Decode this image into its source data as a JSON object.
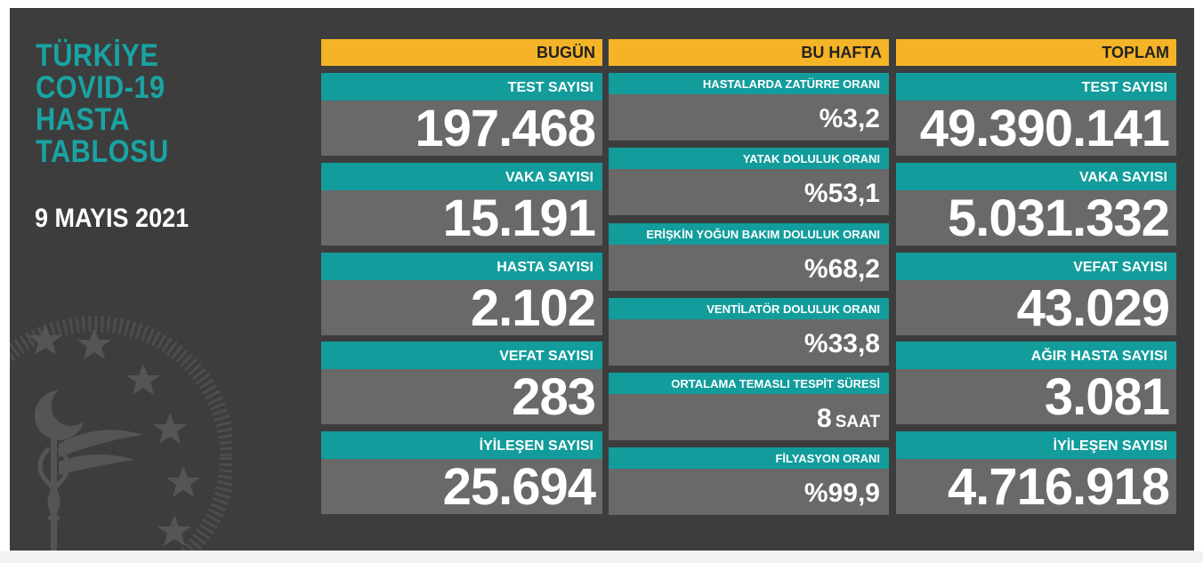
{
  "header": {
    "title_lines": [
      "TÜRKİYE",
      "COVID-19",
      "HASTA",
      "TABLOSU"
    ],
    "date": "9 MAYIS 2021"
  },
  "columns": {
    "today": {
      "heading": "BUGÜN",
      "cards": [
        {
          "label": "TEST SAYISI",
          "value": "197.468"
        },
        {
          "label": "VAKA SAYISI",
          "value": "15.191"
        },
        {
          "label": "HASTA SAYISI",
          "value": "2.102"
        },
        {
          "label": "VEFAT SAYISI",
          "value": "283"
        },
        {
          "label": "İYİLEŞEN SAYISI",
          "value": "25.694"
        }
      ]
    },
    "week": {
      "heading": "BU HAFTA",
      "cards": [
        {
          "label": "HASTALARDA ZATÜRRE ORANI",
          "value": "%3,2"
        },
        {
          "label": "YATAK DOLULUK ORANI",
          "value": "%53,1"
        },
        {
          "label": "ERİŞKİN YOĞUN BAKIM DOLULUK ORANI",
          "value": "%68,2"
        },
        {
          "label": "VENTİLATÖR DOLULUK ORANI",
          "value": "%33,8"
        },
        {
          "label": "ORTALAMA TEMASLI TESPİT SÜRESİ",
          "value": "8",
          "unit": "SAAT"
        },
        {
          "label": "FİLYASYON ORANI",
          "value": "%99,9"
        }
      ]
    },
    "total": {
      "heading": "TOPLAM",
      "cards": [
        {
          "label": "TEST SAYISI",
          "value": "49.390.141"
        },
        {
          "label": "VAKA SAYISI",
          "value": "5.031.332"
        },
        {
          "label": "VEFAT SAYISI",
          "value": "43.029"
        },
        {
          "label": "AĞIR HASTA SAYISI",
          "value": "3.081"
        },
        {
          "label": "İYİLEŞEN SAYISI",
          "value": "4.716.918"
        }
      ]
    }
  },
  "colors": {
    "background": "#3d3d3d",
    "header_bar": "#f5b427",
    "label_bar": "#139c9c",
    "value_box": "#696969",
    "title_text": "#1aa3a3"
  },
  "icons": {
    "emblem": "ministry-of-health-emblem-icon"
  }
}
